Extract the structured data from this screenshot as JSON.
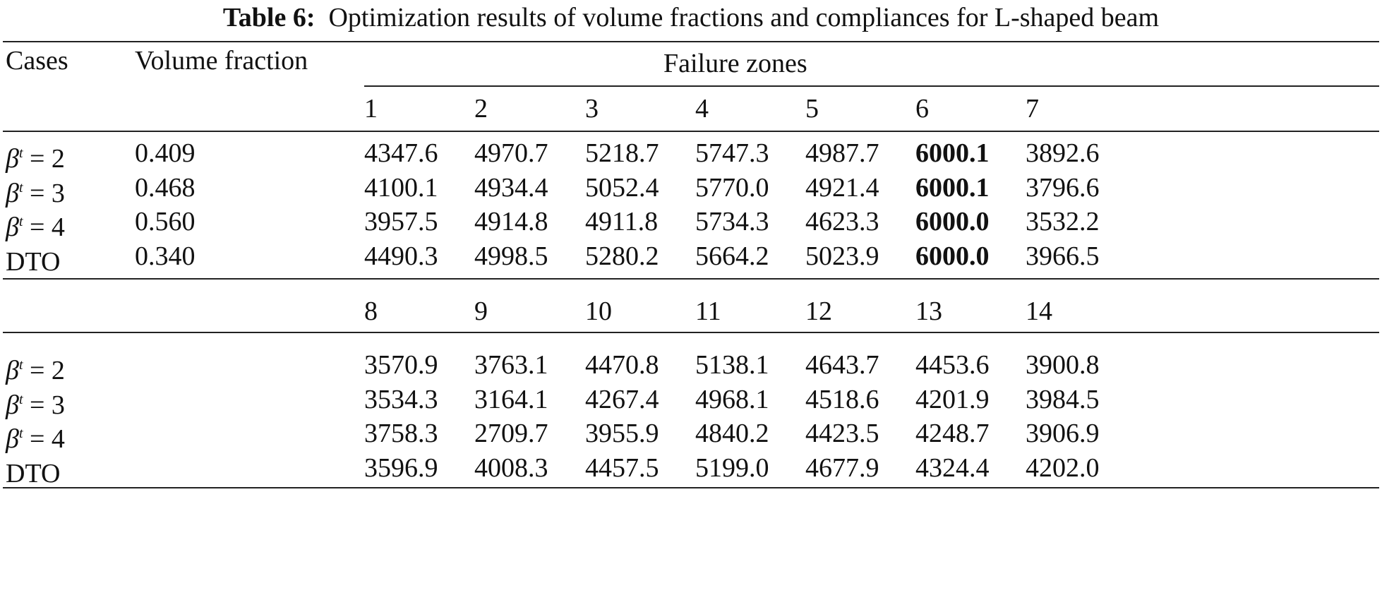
{
  "caption": {
    "label": "Table 6:",
    "text": "Optimization results of volume fractions and compliances for L-shaped beam"
  },
  "headers": {
    "cases": "Cases",
    "volume_fraction": "Volume fraction",
    "failure_zones": "Failure zones"
  },
  "zones_top": [
    "1",
    "2",
    "3",
    "4",
    "5",
    "6",
    "7"
  ],
  "zones_bottom": [
    "8",
    "9",
    "10",
    "11",
    "12",
    "13",
    "14"
  ],
  "rows_top": [
    {
      "case_sym": "β",
      "case_sup": "t",
      "case_rest": " = 2",
      "vf": "0.409",
      "values": [
        "4347.6",
        "4970.7",
        "5218.7",
        "5747.3",
        "4987.7",
        "6000.1",
        "3892.6"
      ]
    },
    {
      "case_sym": "β",
      "case_sup": "t",
      "case_rest": " = 3",
      "vf": "0.468",
      "values": [
        "4100.1",
        "4934.4",
        "5052.4",
        "5770.0",
        "4921.4",
        "6000.1",
        "3796.6"
      ]
    },
    {
      "case_sym": "β",
      "case_sup": "t",
      "case_rest": " = 4",
      "vf": "0.560",
      "values": [
        "3957.5",
        "4914.8",
        "4911.8",
        "5734.3",
        "4623.3",
        "6000.0",
        "3532.2"
      ]
    },
    {
      "case_sym": "",
      "case_sup": "",
      "case_rest": "DTO",
      "vf": "0.340",
      "values": [
        "4490.3",
        "4998.5",
        "5280.2",
        "5664.2",
        "5023.9",
        "6000.0",
        "3966.5"
      ]
    }
  ],
  "rows_bottom": [
    {
      "case_sym": "β",
      "case_sup": "t",
      "case_rest": " = 2",
      "values": [
        "3570.9",
        "3763.1",
        "4470.8",
        "5138.1",
        "4643.7",
        "4453.6",
        "3900.8"
      ]
    },
    {
      "case_sym": "β",
      "case_sup": "t",
      "case_rest": " = 3",
      "values": [
        "3534.3",
        "3164.1",
        "4267.4",
        "4968.1",
        "4518.6",
        "4201.9",
        "3984.5"
      ]
    },
    {
      "case_sym": "β",
      "case_sup": "t",
      "case_rest": " = 4",
      "values": [
        "3758.3",
        "2709.7",
        "3955.9",
        "4840.2",
        "4423.5",
        "4248.7",
        "3906.9"
      ]
    },
    {
      "case_sym": "",
      "case_sup": "",
      "case_rest": "DTO",
      "values": [
        "3596.9",
        "4008.3",
        "4457.5",
        "5199.0",
        "4677.9",
        "4324.4",
        "4202.0"
      ]
    }
  ],
  "bold_column_top": 5
}
